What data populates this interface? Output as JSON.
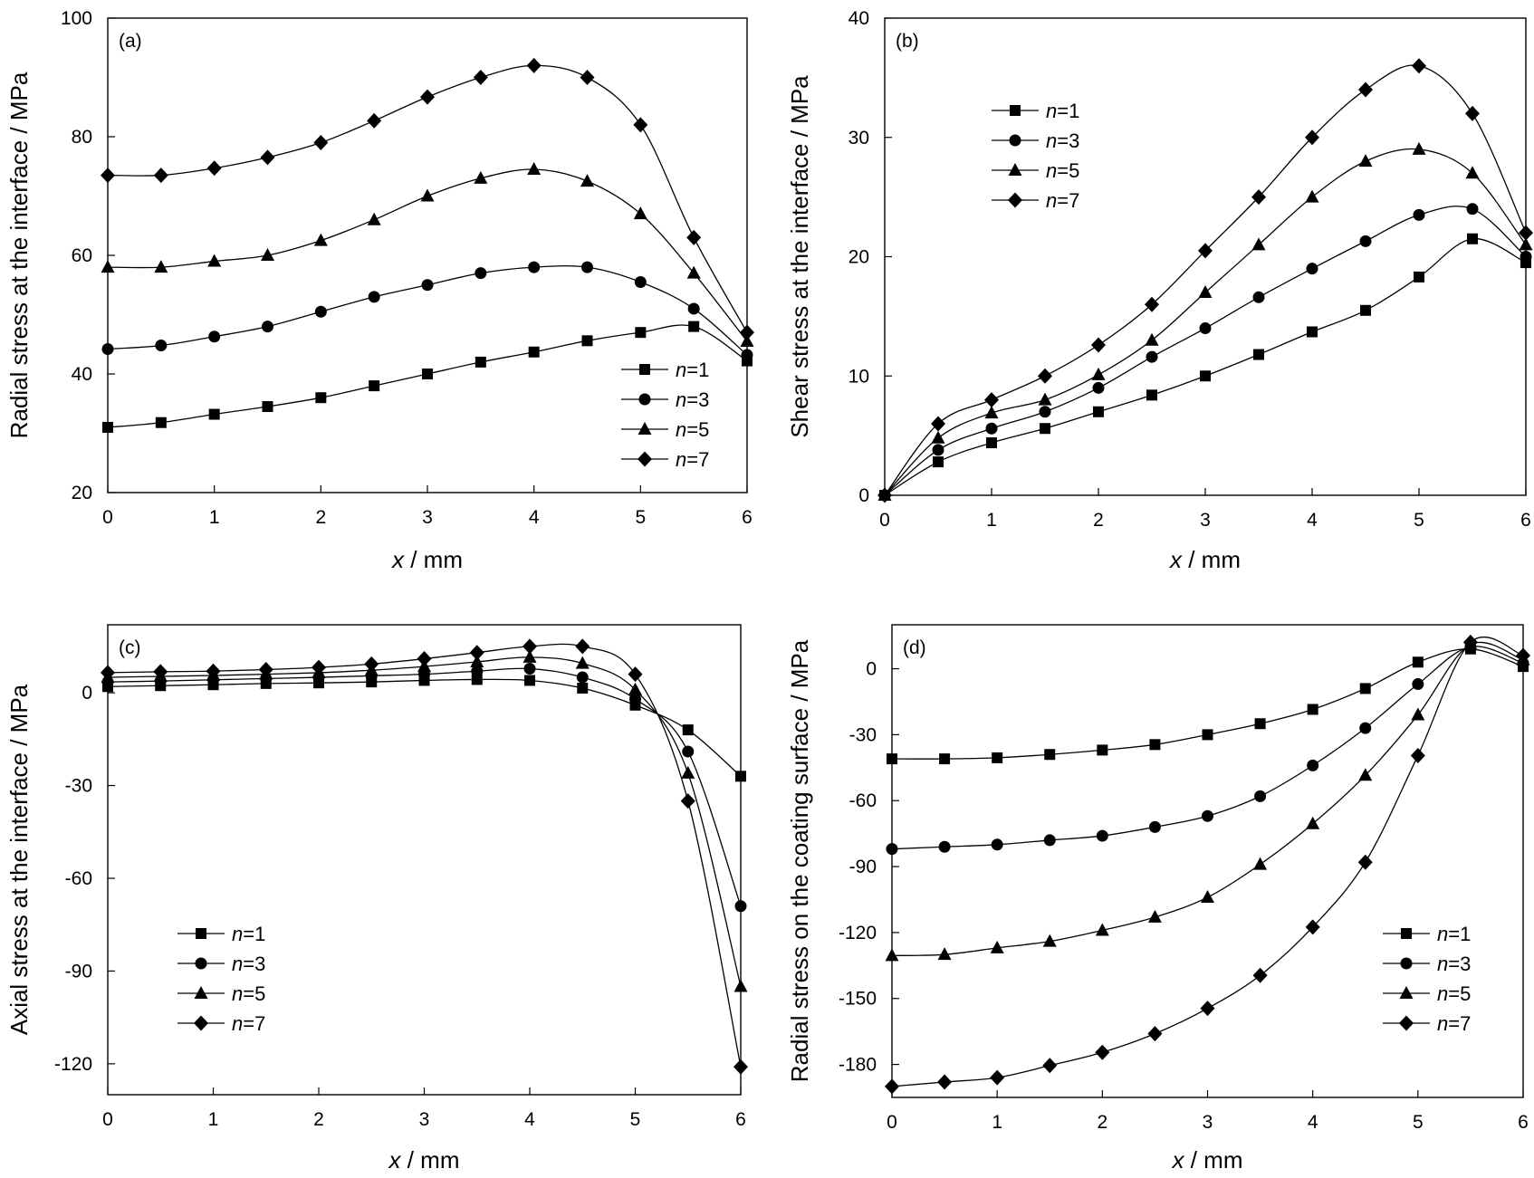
{
  "chart_data": [
    {
      "panel_label": "(a)",
      "type": "line",
      "xlabel_var": "x",
      "xlabel_unit": " / mm",
      "ylabel": "Radial stress at the interface / MPa",
      "xlim": [
        0,
        6
      ],
      "ylim": [
        20,
        100
      ],
      "xticks": [
        0,
        1,
        2,
        3,
        4,
        5,
        6
      ],
      "yticks": [
        20,
        40,
        60,
        80,
        100
      ],
      "legend_position": "bottom-right",
      "x": [
        0,
        0.5,
        1,
        1.5,
        2,
        2.5,
        3,
        3.5,
        4,
        4.5,
        5,
        5.5,
        6
      ],
      "series": [
        {
          "name": "n=1",
          "marker": "square",
          "values": [
            31,
            31.8,
            33.2,
            34.5,
            36,
            38,
            40,
            42,
            43.7,
            45.6,
            47,
            48,
            42.2
          ]
        },
        {
          "name": "n=3",
          "marker": "circle",
          "values": [
            44.2,
            44.8,
            46.3,
            48,
            50.5,
            53,
            55,
            57,
            58,
            58,
            55.5,
            51,
            43.2
          ]
        },
        {
          "name": "n=5",
          "marker": "triangle",
          "values": [
            58,
            58,
            59,
            60,
            62.5,
            66,
            70,
            73,
            74.5,
            72.5,
            67,
            57,
            45.5
          ]
        },
        {
          "name": "n=7",
          "marker": "diamond",
          "values": [
            73.5,
            73.5,
            74.7,
            76.5,
            79,
            82.7,
            86.7,
            90,
            92,
            90,
            82,
            63,
            47
          ]
        }
      ]
    },
    {
      "panel_label": "(b)",
      "type": "line",
      "xlabel_var": "x",
      "xlabel_unit": " / mm",
      "ylabel": "Shear stress at the interface / MPa",
      "xlim": [
        0,
        6
      ],
      "ylim": [
        0,
        40
      ],
      "xticks": [
        0,
        1,
        2,
        3,
        4,
        5,
        6
      ],
      "yticks": [
        0,
        10,
        20,
        30,
        40
      ],
      "legend_position": "top-left",
      "x": [
        0,
        0.5,
        1,
        1.5,
        2,
        2.5,
        3,
        3.5,
        4,
        4.5,
        5,
        5.5,
        6
      ],
      "series": [
        {
          "name": "n=1",
          "marker": "square",
          "values": [
            0,
            2.8,
            4.4,
            5.6,
            7,
            8.4,
            10,
            11.8,
            13.7,
            15.5,
            18.3,
            21.5,
            19.5
          ]
        },
        {
          "name": "n=3",
          "marker": "circle",
          "values": [
            0,
            3.8,
            5.6,
            7,
            9,
            11.6,
            14,
            16.6,
            19,
            21.3,
            23.5,
            24,
            20
          ]
        },
        {
          "name": "n=5",
          "marker": "triangle",
          "values": [
            0,
            4.8,
            6.9,
            8,
            10.1,
            13,
            17,
            21,
            25,
            28,
            29,
            27,
            21
          ]
        },
        {
          "name": "n=7",
          "marker": "diamond",
          "values": [
            0,
            6,
            8,
            10,
            12.6,
            16,
            20.5,
            25,
            30,
            34,
            36,
            32,
            22
          ]
        }
      ]
    },
    {
      "panel_label": "(c)",
      "type": "line",
      "xlabel_var": "x",
      "xlabel_unit": " / mm",
      "ylabel": "Axial stress at the interface / MPa",
      "xlim": [
        0,
        6
      ],
      "ylim": [
        -130,
        22
      ],
      "xticks": [
        0,
        1,
        2,
        3,
        4,
        5,
        6
      ],
      "yticks": [
        0,
        -30,
        -60,
        -90,
        -120
      ],
      "legend_position": "bottom-left",
      "x": [
        0,
        0.5,
        1,
        1.5,
        2,
        2.5,
        3,
        3.5,
        4,
        4.5,
        5,
        5.5,
        6
      ],
      "series": [
        {
          "name": "n=1",
          "marker": "square",
          "values": [
            2,
            2.3,
            2.6,
            3,
            3.2,
            3.5,
            4,
            4.3,
            4,
            1.5,
            -4,
            -12,
            -27
          ]
        },
        {
          "name": "n=3",
          "marker": "circle",
          "values": [
            3.5,
            3.8,
            4.2,
            4.6,
            5,
            5.5,
            6,
            7,
            7.8,
            5,
            -2,
            -19,
            -69
          ]
        },
        {
          "name": "n=5",
          "marker": "triangle",
          "values": [
            5,
            5.3,
            5.6,
            6,
            6.5,
            7.3,
            8.5,
            10,
            11.5,
            9.5,
            1,
            -26,
            -95
          ]
        },
        {
          "name": "n=7",
          "marker": "diamond",
          "values": [
            6.5,
            6.8,
            7,
            7.5,
            8.2,
            9.3,
            11,
            13,
            15,
            15,
            6,
            -35,
            -121
          ]
        }
      ]
    },
    {
      "panel_label": "(d)",
      "type": "line",
      "xlabel_var": "x",
      "xlabel_unit": " / mm",
      "ylabel": "Radial stress on the coating surface / MPa",
      "xlim": [
        0,
        6
      ],
      "ylim": [
        -195,
        20
      ],
      "xticks": [
        0,
        1,
        2,
        3,
        4,
        5,
        6
      ],
      "yticks": [
        0,
        -30,
        -60,
        -90,
        -120,
        -150,
        -180
      ],
      "legend_position": "bottom-right",
      "x": [
        0,
        0.5,
        1,
        1.5,
        2,
        2.5,
        3,
        3.5,
        4,
        4.5,
        5,
        5.5,
        6
      ],
      "series": [
        {
          "name": "n=1",
          "marker": "square",
          "values": [
            -41,
            -41,
            -40.5,
            -39,
            -37,
            -34.5,
            -30,
            -25,
            -18.5,
            -9,
            3,
            9,
            1
          ]
        },
        {
          "name": "n=3",
          "marker": "circle",
          "values": [
            -82,
            -81,
            -80,
            -78,
            -76,
            -72,
            -67,
            -58,
            -44,
            -27,
            -7,
            10,
            2.5
          ]
        },
        {
          "name": "n=5",
          "marker": "triangle",
          "values": [
            -130.5,
            -130,
            -127,
            -124,
            -119,
            -113,
            -104,
            -89,
            -70.5,
            -48.5,
            -21,
            11,
            4
          ]
        },
        {
          "name": "n=7",
          "marker": "diamond",
          "values": [
            -190,
            -188,
            -186,
            -180.5,
            -174.5,
            -166,
            -154.5,
            -139.5,
            -117.5,
            -88,
            -39.5,
            12,
            6
          ]
        }
      ]
    }
  ]
}
